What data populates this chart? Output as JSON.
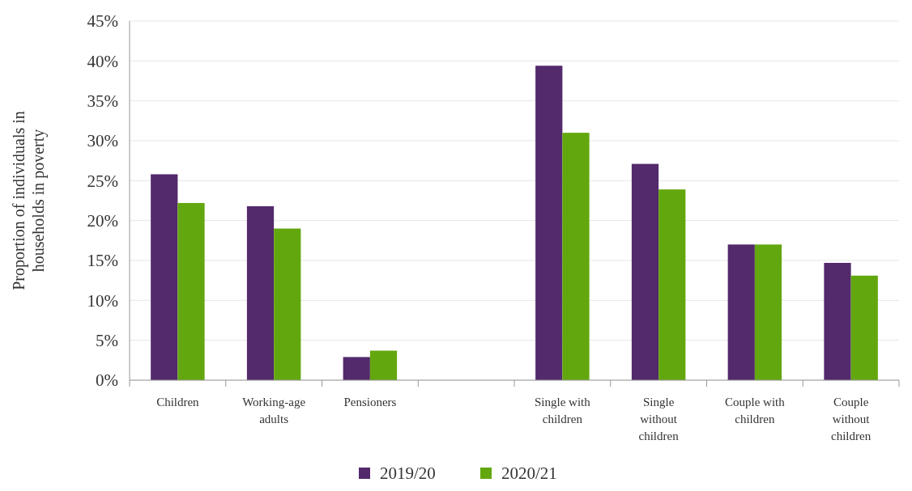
{
  "chart_data": {
    "type": "bar",
    "ylabel": "Proportion of individuals in\nhouseholds in poverty",
    "categories": [
      "Children",
      "Working-age\nadults",
      "Pensioners",
      null,
      "Single with\nchildren",
      "Single\nwithout\nchildren",
      "Couple with\nchildren",
      "Couple\nwithout\nchildren"
    ],
    "series": [
      {
        "name": "2019/20",
        "color": "#532a6c",
        "values": [
          25.8,
          21.8,
          2.9,
          null,
          39.4,
          27.1,
          17.0,
          14.7
        ]
      },
      {
        "name": "2020/21",
        "color": "#63a70f",
        "values": [
          22.2,
          19.0,
          3.7,
          null,
          31.0,
          23.9,
          17.0,
          13.1
        ]
      }
    ],
    "ylim": [
      0,
      45
    ],
    "yticks": [
      {
        "value": 0,
        "label": "0%"
      },
      {
        "value": 5,
        "label": "5%"
      },
      {
        "value": 10,
        "label": "10%"
      },
      {
        "value": 15,
        "label": "15%"
      },
      {
        "value": 20,
        "label": "20%"
      },
      {
        "value": 25,
        "label": "25%"
      },
      {
        "value": 30,
        "label": "30%"
      },
      {
        "value": 35,
        "label": "35%"
      },
      {
        "value": 40,
        "label": "40%"
      },
      {
        "value": 45,
        "label": "45%"
      }
    ],
    "grid": "y",
    "legend": "bottom"
  }
}
